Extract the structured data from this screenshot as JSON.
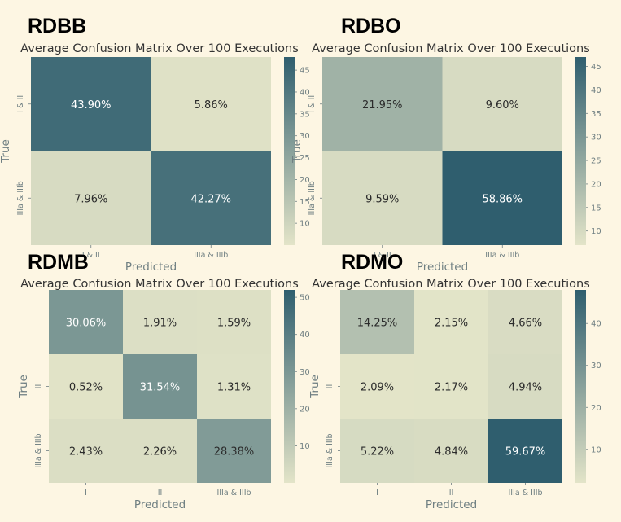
{
  "colors": {
    "page_bg": "#fdf6e3",
    "axes_text": "#6f7f82",
    "cell_light": "#e3e4c8",
    "cell_dark": "#2f5e6e",
    "text_on_light": "#2b2b2b",
    "text_on_dark": "#ffffff"
  },
  "chart_data": [
    {
      "type": "heatmap",
      "panel_label": "RDBB",
      "title": "Average Confusion Matrix Over 100 Executions",
      "xlabel": "Predicted",
      "ylabel": "True",
      "x_tick_labels": [
        "I & II",
        "IIIa & IIIb"
      ],
      "y_tick_labels": [
        "I & II",
        "IIIa & IIIb"
      ],
      "values": [
        [
          43.9,
          5.86
        ],
        [
          7.96,
          42.27
        ]
      ],
      "annotations": [
        [
          "43.90%",
          "5.86%"
        ],
        [
          "7.96%",
          "42.27%"
        ]
      ],
      "colorbar_range": [
        5,
        48
      ],
      "colorbar_ticks": [
        10,
        15,
        20,
        25,
        30,
        35,
        40,
        45
      ]
    },
    {
      "type": "heatmap",
      "panel_label": "RDBO",
      "title": "Average Confusion Matrix Over 100 Executions",
      "xlabel": "Predicted",
      "ylabel": "True",
      "x_tick_labels": [
        "I & II",
        "IIIa & IIIb"
      ],
      "y_tick_labels": [
        "I & II",
        "IIIa & IIIb"
      ],
      "values": [
        [
          21.95,
          9.6
        ],
        [
          9.59,
          58.86
        ]
      ],
      "annotations": [
        [
          "21.95%",
          "9.60%"
        ],
        [
          "9.59%",
          "58.86%"
        ]
      ],
      "colorbar_range": [
        7,
        47
      ],
      "colorbar_ticks": [
        10,
        15,
        20,
        25,
        30,
        35,
        40,
        45
      ]
    },
    {
      "type": "heatmap",
      "panel_label": "RDMB",
      "title": "Average Confusion Matrix Over 100 Executions",
      "xlabel": "Predicted",
      "ylabel": "True",
      "x_tick_labels": [
        "I",
        "II",
        "IIIa & IIIb"
      ],
      "y_tick_labels": [
        "I",
        "II",
        "IIIa & IIIb"
      ],
      "values": [
        [
          30.06,
          1.91,
          1.59
        ],
        [
          0.52,
          31.54,
          1.31
        ],
        [
          2.43,
          2.26,
          28.38
        ]
      ],
      "annotations": [
        [
          "30.06%",
          "1.91%",
          "1.59%"
        ],
        [
          "0.52%",
          "31.54%",
          "1.31%"
        ],
        [
          "2.43%",
          "2.26%",
          "28.38%"
        ]
      ],
      "colorbar_range": [
        0,
        52
      ],
      "colorbar_ticks": [
        10,
        20,
        30,
        40,
        50
      ]
    },
    {
      "type": "heatmap",
      "panel_label": "RDMO",
      "title": "Average Confusion Matrix Over 100 Executions",
      "xlabel": "Predicted",
      "ylabel": "True",
      "x_tick_labels": [
        "I",
        "II",
        "IIIa & IIIb"
      ],
      "y_tick_labels": [
        "I",
        "II",
        "IIIa & IIIb"
      ],
      "values": [
        [
          14.25,
          2.15,
          4.66
        ],
        [
          2.09,
          2.17,
          4.94
        ],
        [
          5.22,
          4.84,
          59.67
        ]
      ],
      "annotations": [
        [
          "14.25%",
          "2.15%",
          "4.66%"
        ],
        [
          "2.09%",
          "2.17%",
          "4.94%"
        ],
        [
          "5.22%",
          "4.84%",
          "59.67%"
        ]
      ],
      "colorbar_range": [
        2,
        48
      ],
      "colorbar_ticks": [
        10,
        20,
        30,
        40
      ]
    }
  ]
}
